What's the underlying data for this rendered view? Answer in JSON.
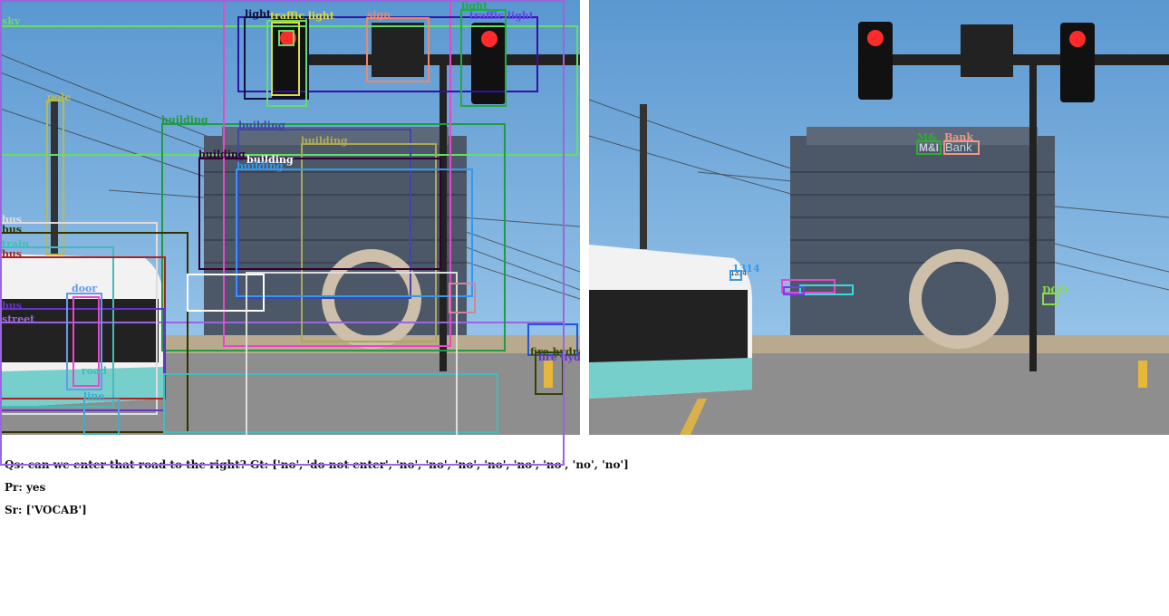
{
  "qa": {
    "question": "Qs: can we enter that road to the right? Gt: ['no', 'do not enter', 'no', 'no', 'no', 'no', 'no', 'no', 'no', 'no']",
    "prediction": "Pr: yes",
    "source": "Sr: ['VOCAB']"
  },
  "scene_text": {
    "bank_sign": "Bank",
    "bank_logo": "M&I",
    "bus_number": "1314"
  },
  "left_labels": [
    {
      "text": "sky",
      "color": "#66dd66"
    },
    {
      "text": "light",
      "color": "#111144"
    },
    {
      "text": "traffic light",
      "color": "#dddd33"
    },
    {
      "text": "sign",
      "color": "#ee8866"
    },
    {
      "text": "light",
      "color": "#22aa44"
    },
    {
      "text": "traffic light",
      "color": "#6644ee"
    },
    {
      "text": "pole",
      "color": "#bbbb44"
    },
    {
      "text": "building",
      "color": "#229944"
    },
    {
      "text": "building",
      "color": "#4444aa"
    },
    {
      "text": "building",
      "color": "#aaaa55"
    },
    {
      "text": "building",
      "color": "#330033"
    },
    {
      "text": "building",
      "color": "#ffffff"
    },
    {
      "text": "building",
      "color": "#3399ee"
    },
    {
      "text": "bus",
      "color": "#dddddd"
    },
    {
      "text": "bus",
      "color": "#333300"
    },
    {
      "text": "train",
      "color": "#44bbbb"
    },
    {
      "text": "bus",
      "color": "#aa2222"
    },
    {
      "text": "door",
      "color": "#6699ee"
    },
    {
      "text": "bus",
      "color": "#6633cc"
    },
    {
      "text": "street",
      "color": "#9966dd"
    },
    {
      "text": "road",
      "color": "#44bbbb"
    },
    {
      "text": "line",
      "color": "#44aacc"
    },
    {
      "text": "fire hydrant",
      "color": "#334400"
    },
    {
      "text": "fire hydrant",
      "color": "#6633cc"
    }
  ],
  "right_labels": [
    {
      "text": "M&",
      "color": "#33aa33"
    },
    {
      "text": "Bank",
      "color": "#ee9988"
    },
    {
      "text": "1314",
      "color": "#3399ee"
    },
    {
      "text": "DOO",
      "color": "#88dd44"
    }
  ],
  "colors": {
    "sky_top": "#5f9fd6",
    "sky_bottom": "#9fcbef",
    "building": "#4d5868",
    "road": "#8c8c8c",
    "bus_teal": "#7fd3cf",
    "signal_red": "#ff2b2b"
  }
}
